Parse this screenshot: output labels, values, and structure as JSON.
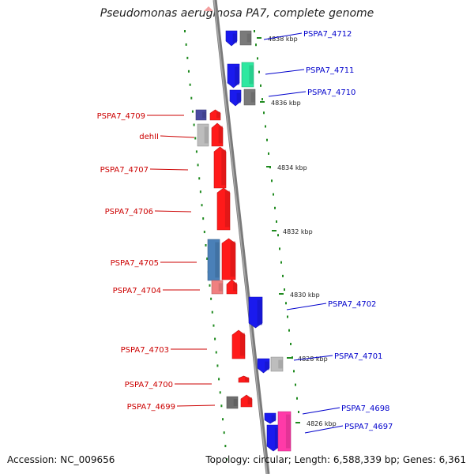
{
  "title": "Pseudomonas aeruginosa PA7, complete genome",
  "footer": {
    "accession": "Accession: NC_009656",
    "summary": "Topology: circular; Length: 6,588,339 bp; Genes: 6,361"
  },
  "colors": {
    "forward_gene": "#ff0000",
    "reverse_gene": "#0000e0",
    "forward_label": "#cc0000",
    "reverse_label": "#0000cc",
    "backbone": "#888888",
    "tick": "#1f8a1f"
  },
  "kbp_markers": [
    "4838 kbp",
    "4836 kbp",
    "4834 kbp",
    "4832 kbp",
    "4830 kbp",
    "4828 kbp",
    "4826 kbp"
  ],
  "forward_genes": [
    {
      "label": "PSPA7_4709"
    },
    {
      "label": "dehII"
    },
    {
      "label": "PSPA7_4707"
    },
    {
      "label": "PSPA7_4706"
    },
    {
      "label": "PSPA7_4705"
    },
    {
      "label": "PSPA7_4704"
    },
    {
      "label": "PSPA7_4703"
    },
    {
      "label": "PSPA7_4700"
    },
    {
      "label": "PSPA7_4699"
    }
  ],
  "reverse_genes": [
    {
      "label": "PSPA7_4712"
    },
    {
      "label": "PSPA7_4711"
    },
    {
      "label": "PSPA7_4710"
    },
    {
      "label": "PSPA7_4702"
    },
    {
      "label": "PSPA7_4701"
    },
    {
      "label": "PSPA7_4698"
    },
    {
      "label": "PSPA7_4697"
    }
  ]
}
